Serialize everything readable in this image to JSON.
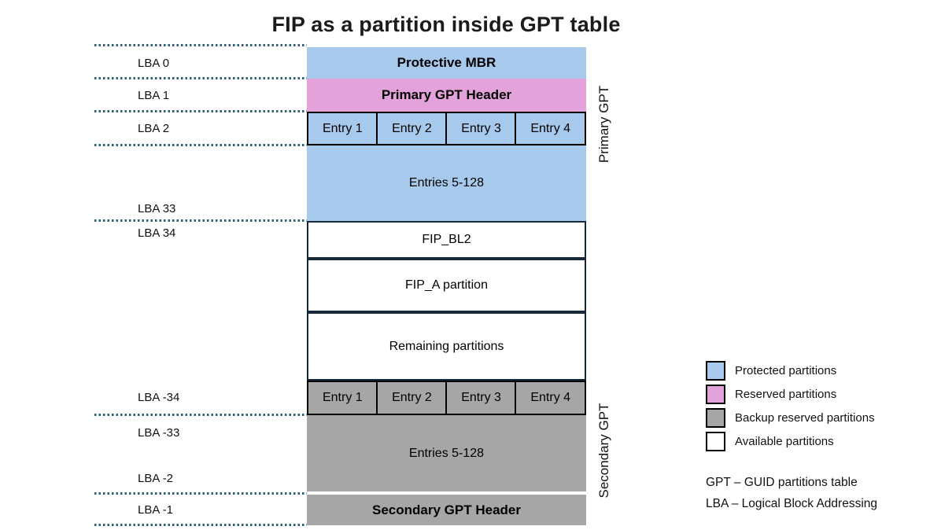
{
  "title": "FIP as a partition inside GPT table",
  "colors": {
    "protected": "#A7C9EC",
    "reserved": "#E4A2DA",
    "backup": "#A6A6A6",
    "available": "#FFFFFF",
    "cell_border": "#000000",
    "box_border": "#16283A",
    "dotted_line": "#2B6172"
  },
  "lba_labels": [
    "LBA 0",
    "LBA 1",
    "LBA 2",
    "LBA 33",
    "LBA 34",
    "LBA -34",
    "LBA -33",
    "LBA -2",
    "LBA -1"
  ],
  "blocks": {
    "protective_mbr": "Protective MBR",
    "primary_gpt_header": "Primary GPT Header",
    "primary_entries": [
      "Entry 1",
      "Entry 2",
      "Entry 3",
      "Entry 4"
    ],
    "primary_entries_rest": "Entries 5-128",
    "fip_bl2": "FIP_BL2",
    "fip_a": "FIP_A partition",
    "remaining": "Remaining partitions",
    "secondary_entries": [
      "Entry 1",
      "Entry 2",
      "Entry 3",
      "Entry 4"
    ],
    "secondary_entries_rest": "Entries 5-128",
    "secondary_gpt_header": "Secondary GPT Header"
  },
  "side_labels": {
    "primary": "Primary GPT",
    "secondary": "Secondary GPT"
  },
  "legend": [
    {
      "label": "Protected partitions",
      "color": "#A7C9EC"
    },
    {
      "label": "Reserved partitions",
      "color": "#E4A2DA"
    },
    {
      "label": "Backup reserved partitions",
      "color": "#A6A6A6"
    },
    {
      "label": "Available partitions",
      "color": "#FFFFFF"
    }
  ],
  "notes": [
    "GPT – GUID partitions table",
    "LBA – Logical Block Addressing"
  ]
}
